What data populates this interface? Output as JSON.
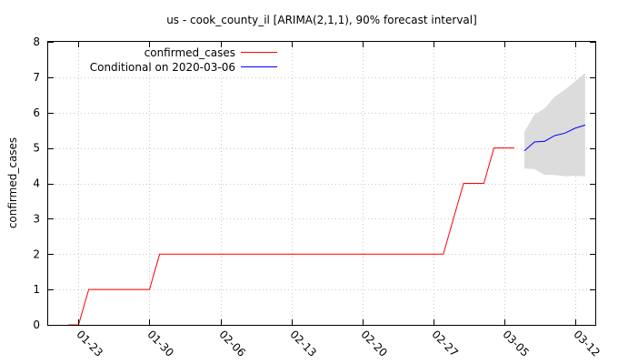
{
  "chart_data": {
    "type": "line",
    "title": "us - cook_county_il [ARIMA(2,1,1), 90% forecast interval]",
    "xlabel": "",
    "ylabel": "confirmed_cases",
    "ylim": [
      0,
      8
    ],
    "yticks": [
      "0",
      "1",
      "2",
      "3",
      "4",
      "5",
      "6",
      "7",
      "8"
    ],
    "xlim": [
      "2020-01-20",
      "2020-03-14"
    ],
    "xticks": [
      {
        "label": "01-23",
        "date": "2020-01-23"
      },
      {
        "label": "01-30",
        "date": "2020-01-30"
      },
      {
        "label": "02-06",
        "date": "2020-02-06"
      },
      {
        "label": "02-13",
        "date": "2020-02-13"
      },
      {
        "label": "02-20",
        "date": "2020-02-20"
      },
      {
        "label": "02-27",
        "date": "2020-02-27"
      },
      {
        "label": "03-05",
        "date": "2020-03-05"
      },
      {
        "label": "03-12",
        "date": "2020-03-12"
      }
    ],
    "grid": true,
    "legend_position": "top-left",
    "series": [
      {
        "name": "confirmed_cases",
        "color": "#ff0000",
        "points": [
          [
            "2020-01-22",
            0
          ],
          [
            "2020-01-23",
            0
          ],
          [
            "2020-01-24",
            1
          ],
          [
            "2020-01-25",
            1
          ],
          [
            "2020-01-26",
            1
          ],
          [
            "2020-01-27",
            1
          ],
          [
            "2020-01-28",
            1
          ],
          [
            "2020-01-29",
            1
          ],
          [
            "2020-01-30",
            1
          ],
          [
            "2020-01-31",
            2
          ],
          [
            "2020-02-01",
            2
          ],
          [
            "2020-02-15",
            2
          ],
          [
            "2020-02-28",
            2
          ],
          [
            "2020-02-29",
            3
          ],
          [
            "2020-03-01",
            4
          ],
          [
            "2020-03-02",
            4
          ],
          [
            "2020-03-03",
            4
          ],
          [
            "2020-03-04",
            5
          ],
          [
            "2020-03-05",
            5
          ],
          [
            "2020-03-06",
            5
          ]
        ]
      },
      {
        "name": "Conditional on 2020-03-06",
        "color": "#0000ff",
        "points": [
          [
            "2020-03-07",
            4.92
          ],
          [
            "2020-03-08",
            5.17
          ],
          [
            "2020-03-09",
            5.19
          ],
          [
            "2020-03-10",
            5.35
          ],
          [
            "2020-03-11",
            5.42
          ],
          [
            "2020-03-12",
            5.56
          ],
          [
            "2020-03-13",
            5.65
          ]
        ]
      }
    ],
    "forecast_interval": {
      "level": "90%",
      "color": "#dcdcdc",
      "points": [
        {
          "x": "2020-03-07",
          "lower": 4.42,
          "upper": 5.45
        },
        {
          "x": "2020-03-08",
          "lower": 4.4,
          "upper": 5.95
        },
        {
          "x": "2020-03-09",
          "lower": 4.24,
          "upper": 6.12
        },
        {
          "x": "2020-03-10",
          "lower": 4.24,
          "upper": 6.45
        },
        {
          "x": "2020-03-11",
          "lower": 4.2,
          "upper": 6.65
        },
        {
          "x": "2020-03-12",
          "lower": 4.21,
          "upper": 6.88
        },
        {
          "x": "2020-03-13",
          "lower": 4.2,
          "upper": 7.12
        }
      ]
    }
  }
}
